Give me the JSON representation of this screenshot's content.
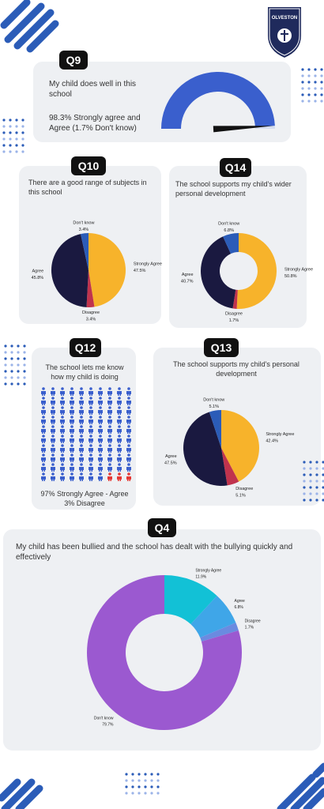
{
  "header": {
    "logo_text": "OLVESTON"
  },
  "chart_data": [
    {
      "type": "gauge",
      "badge": "Q9",
      "title": "My child does well in this school",
      "subtitle": "98.3% Strongly agree and Agree (1.7% Don't know)",
      "values": [
        98.3
      ],
      "ylim": [
        0,
        100
      ],
      "color": "#3a5fcd"
    },
    {
      "type": "pie",
      "badge": "Q10",
      "title": "There are a good range of subjects in this school",
      "donut": false,
      "categories": [
        "Strongly Agree",
        "Disagree",
        "Agree",
        "Don't know"
      ],
      "values": [
        47.5,
        3.4,
        45.8,
        3.4
      ],
      "value_labels": [
        "47.5%",
        "3.4%",
        "45.8%",
        "3.4%"
      ],
      "colors": [
        "#f7b32b",
        "#c0334d",
        "#1a1940",
        "#2b5cb8"
      ]
    },
    {
      "type": "pie",
      "badge": "Q14",
      "title": "The school supports my child's wider personal development",
      "donut": true,
      "categories": [
        "Strongly Agree",
        "Disagree",
        "Agree",
        "Don't know"
      ],
      "values": [
        50.8,
        1.7,
        40.7,
        6.8
      ],
      "value_labels": [
        "50.8%",
        "1.7%",
        "40.7%",
        "6.8%"
      ],
      "colors": [
        "#f7b32b",
        "#c0334d",
        "#1a1940",
        "#2b5cb8"
      ]
    },
    {
      "type": "waffle",
      "badge": "Q12",
      "title": "The school lets me know how my child is doing",
      "caption": [
        "97% Strongly Agree - Agree",
        "3% Disagree"
      ],
      "values": [
        97,
        3
      ],
      "colors": [
        "#3a5fcd",
        "#e53935"
      ]
    },
    {
      "type": "pie",
      "badge": "Q13",
      "title": "The school supports my child's personal development",
      "donut": false,
      "categories": [
        "Strongly Agree",
        "Disagree",
        "Agree",
        "Don't know"
      ],
      "values": [
        42.4,
        5.1,
        47.5,
        5.1
      ],
      "value_labels": [
        "42.4%",
        "5.1%",
        "47.5%",
        "5.1%"
      ],
      "colors": [
        "#f7b32b",
        "#c0334d",
        "#1a1940",
        "#2b5cb8"
      ]
    },
    {
      "type": "pie",
      "badge": "Q4",
      "title": "My child has been bullied and the school has  dealt with the bullying quickly and effectively",
      "donut": true,
      "categories": [
        "Strongly Agree",
        "Agree",
        "Disagree",
        "Don't know"
      ],
      "values": [
        11.9,
        6.8,
        1.7,
        79.7
      ],
      "value_labels": [
        "11.9%",
        "6.8%",
        "1.7%",
        "79.7%"
      ],
      "colors": [
        "#12c1d6",
        "#3fa6e8",
        "#6a8be0",
        "#9b59d0"
      ]
    }
  ]
}
